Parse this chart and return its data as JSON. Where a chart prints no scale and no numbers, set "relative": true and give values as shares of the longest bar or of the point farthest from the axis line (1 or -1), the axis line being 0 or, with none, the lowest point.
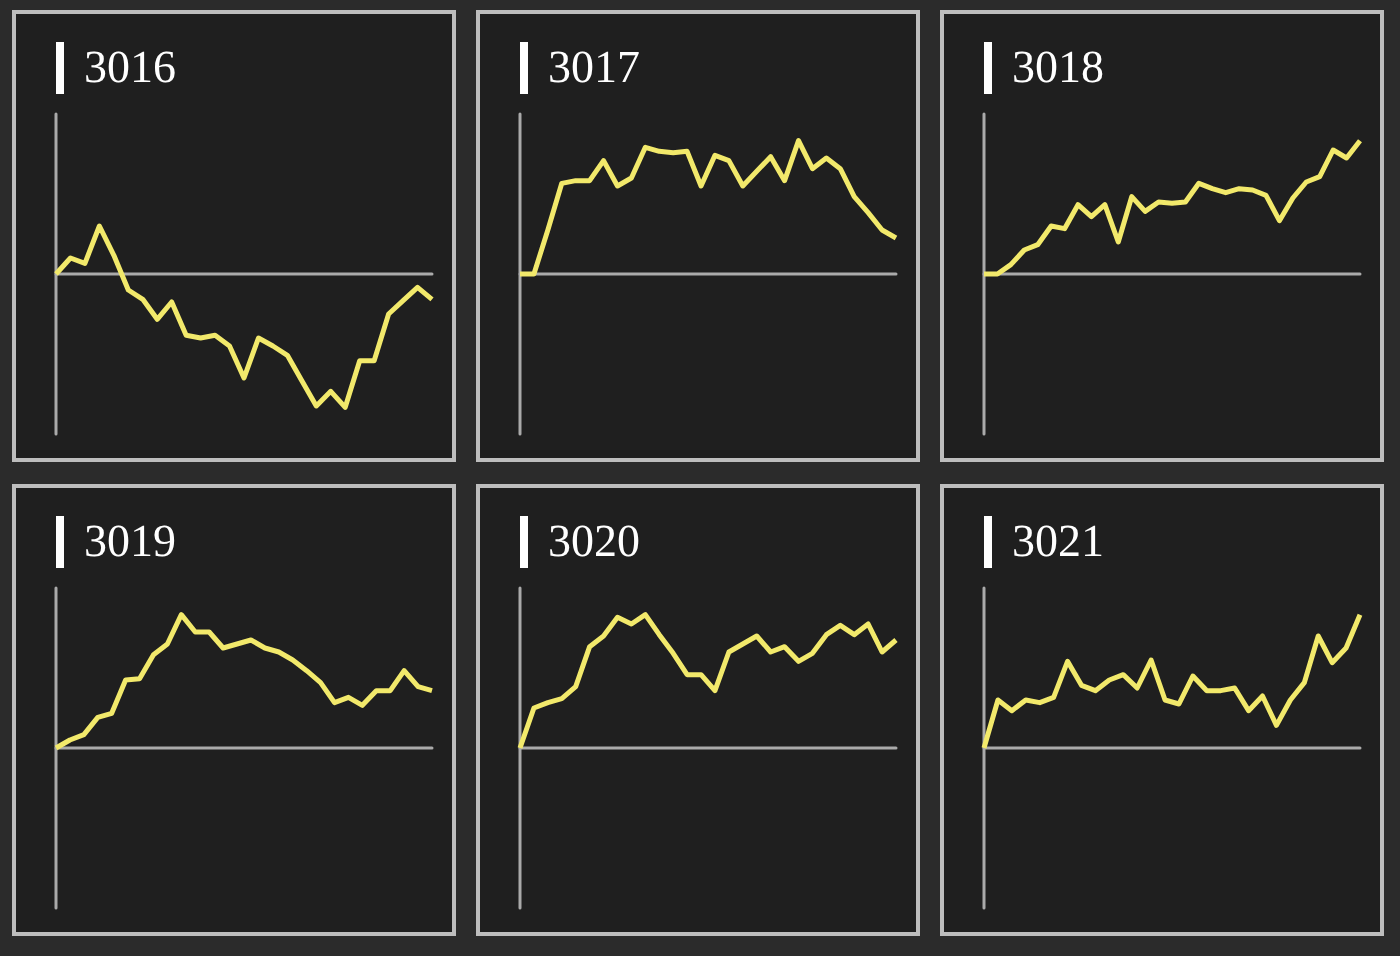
{
  "chart_data": [
    {
      "type": "line",
      "title": "3016",
      "relative": true,
      "color": "#f2e96b",
      "categories": [
        null,
        null,
        null,
        null,
        null,
        null,
        null,
        null,
        null,
        null,
        null,
        null,
        null,
        null,
        null,
        null,
        null,
        null,
        null,
        null,
        null,
        null,
        null,
        null,
        null,
        null,
        null
      ],
      "values": [
        0,
        0.12,
        0.08,
        0.36,
        0.14,
        -0.12,
        -0.19,
        -0.34,
        -0.21,
        -0.46,
        -0.48,
        -0.46,
        -0.54,
        -0.78,
        -0.48,
        -0.54,
        -0.61,
        -0.8,
        -0.99,
        -0.88,
        -1,
        -0.65,
        -0.65,
        -0.3,
        -0.2,
        -0.1,
        -0.19
      ]
    },
    {
      "type": "line",
      "title": "3017",
      "relative": true,
      "color": "#f2e96b",
      "categories": [
        null,
        null,
        null,
        null,
        null,
        null,
        null,
        null,
        null,
        null,
        null,
        null,
        null,
        null,
        null,
        null,
        null,
        null,
        null,
        null,
        null,
        null,
        null,
        null,
        null,
        null,
        null,
        null
      ],
      "values": [
        0,
        0,
        0.33,
        0.68,
        0.7,
        0.7,
        0.85,
        0.66,
        0.72,
        0.95,
        0.92,
        0.91,
        0.92,
        0.66,
        0.89,
        0.85,
        0.66,
        0.77,
        0.88,
        0.7,
        1,
        0.79,
        0.87,
        0.79,
        0.58,
        0.46,
        0.33,
        0.27
      ]
    },
    {
      "type": "line",
      "title": "3018",
      "relative": true,
      "color": "#f2e96b",
      "categories": [
        null,
        null,
        null,
        null,
        null,
        null,
        null,
        null,
        null,
        null,
        null,
        null,
        null,
        null,
        null,
        null,
        null,
        null,
        null,
        null,
        null,
        null,
        null,
        null,
        null,
        null,
        null,
        null,
        null
      ],
      "values": [
        0,
        0,
        0.07,
        0.18,
        0.22,
        0.36,
        0.34,
        0.52,
        0.43,
        0.52,
        0.24,
        0.58,
        0.47,
        0.54,
        0.53,
        0.54,
        0.68,
        0.64,
        0.61,
        0.64,
        0.63,
        0.59,
        0.4,
        0.57,
        0.69,
        0.73,
        0.93,
        0.87,
        1
      ]
    },
    {
      "type": "line",
      "title": "3019",
      "relative": true,
      "color": "#f2e96b",
      "categories": [
        null,
        null,
        null,
        null,
        null,
        null,
        null,
        null,
        null,
        null,
        null,
        null,
        null,
        null,
        null,
        null,
        null,
        null,
        null,
        null,
        null,
        null,
        null,
        null,
        null,
        null,
        null,
        null
      ],
      "values": [
        0,
        0.06,
        0.1,
        0.23,
        0.26,
        0.51,
        0.52,
        0.7,
        0.78,
        1,
        0.87,
        0.87,
        0.75,
        0.78,
        0.81,
        0.75,
        0.72,
        0.66,
        0.58,
        0.49,
        0.34,
        0.38,
        0.32,
        0.43,
        0.43,
        0.58,
        0.46,
        0.43
      ]
    },
    {
      "type": "line",
      "title": "3020",
      "relative": true,
      "color": "#f2e96b",
      "categories": [
        null,
        null,
        null,
        null,
        null,
        null,
        null,
        null,
        null,
        null,
        null,
        null,
        null,
        null,
        null,
        null,
        null,
        null,
        null,
        null,
        null,
        null,
        null,
        null,
        null,
        null,
        null,
        null
      ],
      "values": [
        0,
        0.3,
        0.34,
        0.37,
        0.46,
        0.76,
        0.84,
        0.98,
        0.93,
        1,
        0.85,
        0.71,
        0.55,
        0.55,
        0.43,
        0.72,
        0.78,
        0.84,
        0.72,
        0.76,
        0.65,
        0.71,
        0.85,
        0.92,
        0.85,
        0.93,
        0.72,
        0.81
      ]
    },
    {
      "type": "line",
      "title": "3021",
      "relative": true,
      "color": "#f2e96b",
      "categories": [
        null,
        null,
        null,
        null,
        null,
        null,
        null,
        null,
        null,
        null,
        null,
        null,
        null,
        null,
        null,
        null,
        null,
        null,
        null,
        null,
        null,
        null,
        null,
        null,
        null,
        null,
        null,
        null
      ],
      "values": [
        0,
        0.36,
        0.28,
        0.36,
        0.34,
        0.38,
        0.65,
        0.47,
        0.43,
        0.51,
        0.55,
        0.45,
        0.66,
        0.36,
        0.33,
        0.54,
        0.43,
        0.43,
        0.45,
        0.28,
        0.39,
        0.17,
        0.36,
        0.49,
        0.84,
        0.64,
        0.75,
        1
      ]
    }
  ]
}
